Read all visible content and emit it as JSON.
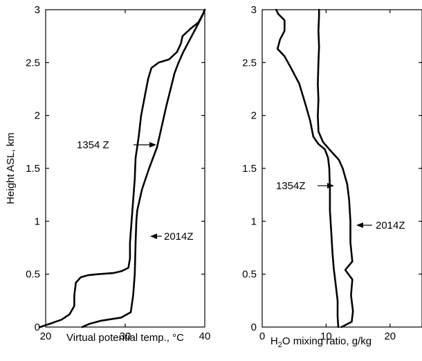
{
  "chart_data": [
    {
      "type": "line",
      "xlabel": "Virtual potential temp., °C",
      "ylabel": "Height ASL, km",
      "xlim": [
        20,
        40
      ],
      "ylim": [
        0,
        3
      ],
      "xticks": [
        "20",
        "30",
        "40"
      ],
      "yticks": [
        "0",
        "0.5",
        "1",
        "1.5",
        "2",
        "2.5",
        "3"
      ],
      "grid": false,
      "series": [
        {
          "name": "1354 Z",
          "points": [
            [
              19.3,
              0
            ],
            [
              20.5,
              0.03
            ],
            [
              22,
              0.07
            ],
            [
              23,
              0.12
            ],
            [
              23.6,
              0.2
            ],
            [
              23.6,
              0.3
            ],
            [
              23.8,
              0.42
            ],
            [
              24.4,
              0.47
            ],
            [
              25.3,
              0.49
            ],
            [
              26.6,
              0.5
            ],
            [
              28.5,
              0.51
            ],
            [
              29.6,
              0.53
            ],
            [
              30.4,
              0.56
            ],
            [
              30.6,
              0.65
            ],
            [
              30.6,
              0.8
            ],
            [
              30.8,
              1.0
            ],
            [
              31.0,
              1.2
            ],
            [
              31.2,
              1.4
            ],
            [
              31.3,
              1.6
            ],
            [
              31.5,
              1.7
            ],
            [
              31.7,
              1.8
            ],
            [
              32.0,
              2.0
            ],
            [
              32.5,
              2.2
            ],
            [
              32.9,
              2.35
            ],
            [
              33.3,
              2.45
            ],
            [
              34.2,
              2.5
            ],
            [
              35.5,
              2.53
            ],
            [
              36.5,
              2.6
            ],
            [
              37.0,
              2.68
            ],
            [
              37.2,
              2.75
            ],
            [
              38.2,
              2.82
            ],
            [
              39.2,
              2.88
            ],
            [
              39.7,
              2.95
            ],
            [
              40.0,
              3.0
            ]
          ]
        },
        {
          "name": "2014Z",
          "points": [
            [
              24.6,
              0
            ],
            [
              25.5,
              0.03
            ],
            [
              27.0,
              0.06
            ],
            [
              29.5,
              0.09
            ],
            [
              30.7,
              0.14
            ],
            [
              31.0,
              0.3
            ],
            [
              31.2,
              0.5
            ],
            [
              31.3,
              0.8
            ],
            [
              31.4,
              1.0
            ],
            [
              31.5,
              1.1
            ],
            [
              32.1,
              1.3
            ],
            [
              33.0,
              1.5
            ],
            [
              34.0,
              1.7
            ],
            [
              34.6,
              1.9
            ],
            [
              35.2,
              2.1
            ],
            [
              35.7,
              2.25
            ],
            [
              36.2,
              2.4
            ],
            [
              36.7,
              2.5
            ],
            [
              37.3,
              2.6
            ],
            [
              38.0,
              2.7
            ],
            [
              38.7,
              2.8
            ],
            [
              39.4,
              2.9
            ],
            [
              39.8,
              2.96
            ],
            [
              40.0,
              3.0
            ]
          ]
        }
      ],
      "annotations": [
        "1354 Z",
        "2014Z"
      ]
    },
    {
      "type": "line",
      "xlabel_main": "H",
      "xlabel_sub": "2",
      "xlabel_rest": "O mixing ratio, g/kg",
      "xlim": [
        0,
        25
      ],
      "ylim": [
        0,
        3
      ],
      "xticks": [
        "0",
        "10",
        "20"
      ],
      "yticks": [
        "0",
        "0.5",
        "1",
        "1.5",
        "2",
        "2.5",
        "3"
      ],
      "grid": false,
      "series": [
        {
          "name": "1354Z",
          "points": [
            [
              11.9,
              0
            ],
            [
              11.8,
              0.1
            ],
            [
              11.8,
              0.25
            ],
            [
              11.5,
              0.4
            ],
            [
              11.2,
              0.55
            ],
            [
              11.0,
              0.7
            ],
            [
              10.8,
              0.9
            ],
            [
              10.6,
              1.1
            ],
            [
              10.6,
              1.3
            ],
            [
              10.5,
              1.5
            ],
            [
              10.3,
              1.6
            ],
            [
              9.8,
              1.68
            ],
            [
              8.8,
              1.73
            ],
            [
              8.0,
              1.8
            ],
            [
              7.5,
              1.95
            ],
            [
              6.8,
              2.1
            ],
            [
              5.8,
              2.3
            ],
            [
              4.5,
              2.45
            ],
            [
              3.5,
              2.56
            ],
            [
              2.4,
              2.63
            ],
            [
              2.8,
              2.72
            ],
            [
              3.5,
              2.8
            ],
            [
              3.5,
              2.9
            ],
            [
              2.5,
              2.96
            ],
            [
              2.2,
              3.0
            ]
          ]
        },
        {
          "name": "2014Z",
          "points": [
            [
              12.4,
              0
            ],
            [
              14.0,
              0.05
            ],
            [
              14.2,
              0.15
            ],
            [
              13.9,
              0.3
            ],
            [
              14.1,
              0.45
            ],
            [
              13.0,
              0.54
            ],
            [
              14.1,
              0.62
            ],
            [
              13.8,
              0.8
            ],
            [
              13.8,
              1.0
            ],
            [
              13.6,
              1.2
            ],
            [
              13.3,
              1.35
            ],
            [
              12.6,
              1.5
            ],
            [
              12.0,
              1.58
            ],
            [
              10.5,
              1.68
            ],
            [
              9.5,
              1.75
            ],
            [
              8.8,
              1.85
            ],
            [
              8.7,
              2.0
            ],
            [
              8.8,
              2.15
            ],
            [
              8.7,
              2.3
            ],
            [
              8.8,
              2.5
            ],
            [
              8.9,
              2.65
            ],
            [
              8.8,
              2.8
            ],
            [
              8.9,
              2.95
            ],
            [
              8.9,
              3.0
            ]
          ]
        }
      ],
      "annotations": [
        "1354Z",
        "2014Z"
      ]
    }
  ]
}
